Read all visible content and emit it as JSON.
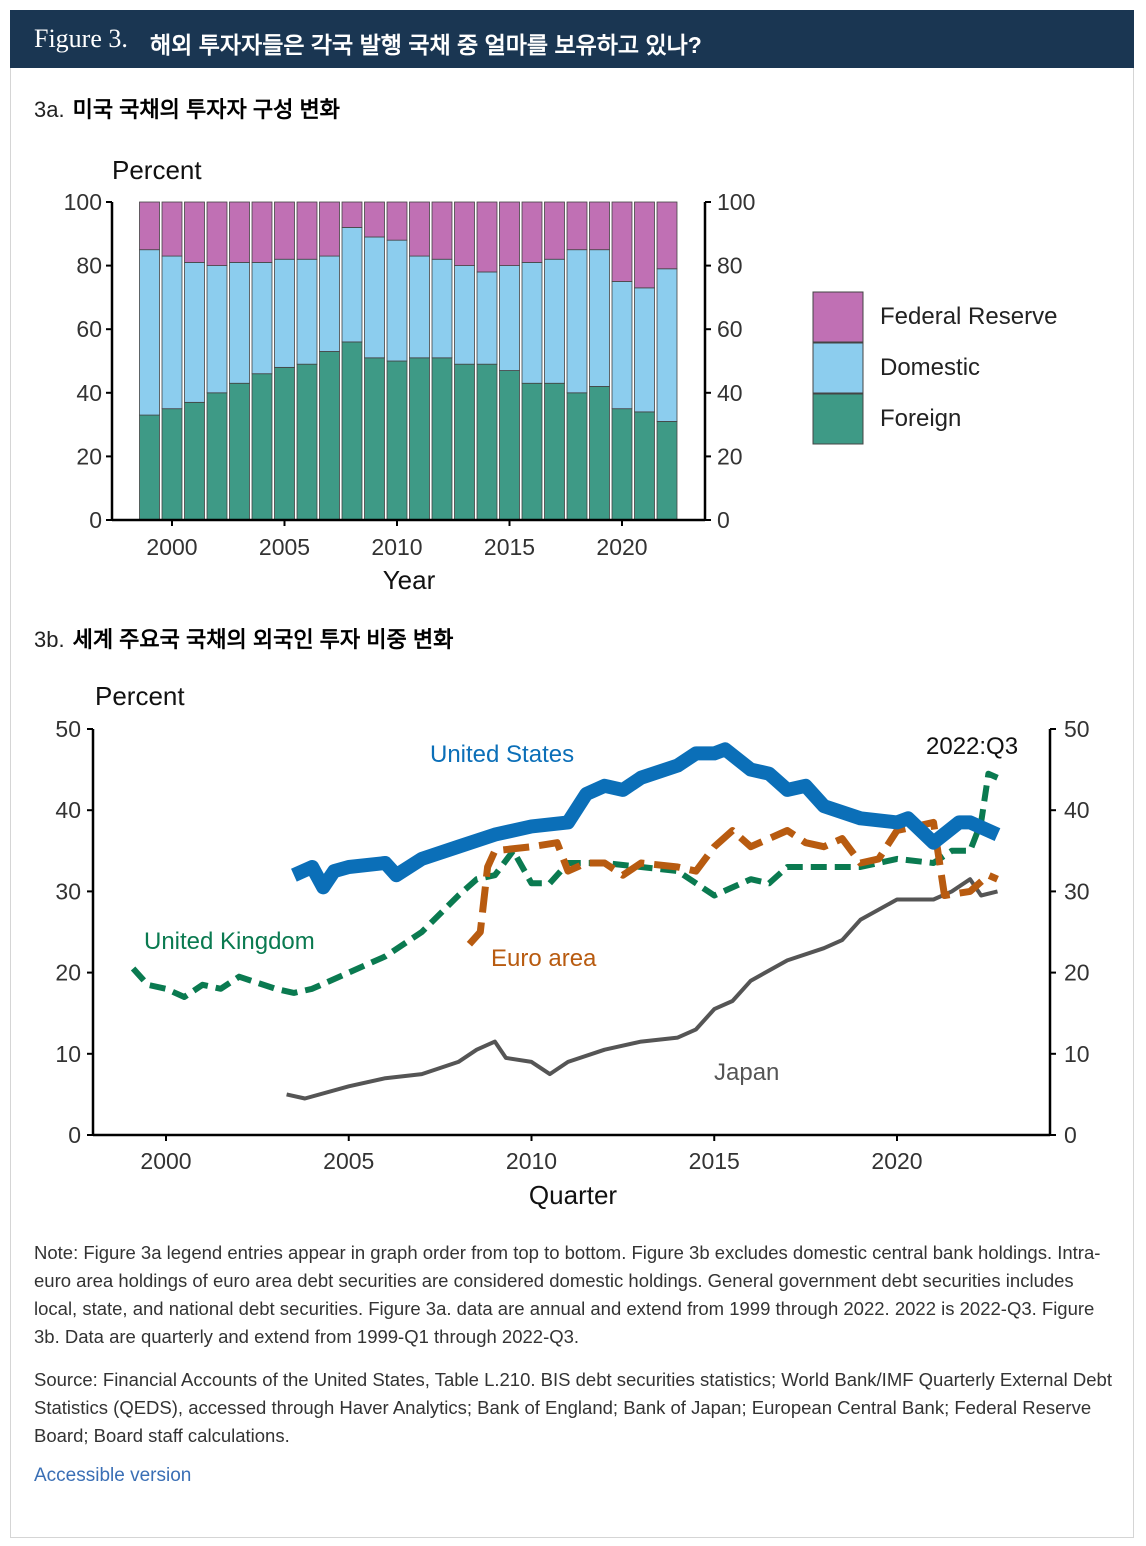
{
  "header": {
    "figure_label": "Figure 3.",
    "title": "해외 투자자들은 각국 발행 국채 중 얼마를 보유하고 있나?"
  },
  "panel_a": {
    "label": "3a.",
    "title": "미국 국채의 투자자 구성 변화"
  },
  "panel_b": {
    "label": "3b.",
    "title": "세계 주요국 국채의 외국인 투자 비중 변화"
  },
  "chart_data": [
    {
      "type": "bar",
      "stacked": true,
      "ylabel": "Percent",
      "xlabel": "Year",
      "ylim": [
        0,
        100
      ],
      "yticks": [
        0,
        20,
        40,
        60,
        80,
        100
      ],
      "xticks": [
        2000,
        2005,
        2010,
        2015,
        2020
      ],
      "legend_placement": "right",
      "categories": [
        1999,
        2000,
        2001,
        2002,
        2003,
        2004,
        2005,
        2006,
        2007,
        2008,
        2009,
        2010,
        2011,
        2012,
        2013,
        2014,
        2015,
        2016,
        2017,
        2018,
        2019,
        2020,
        2021,
        2022
      ],
      "series": [
        {
          "name": "Foreign",
          "color": "#3e9a86",
          "values": [
            33,
            35,
            37,
            40,
            43,
            46,
            48,
            49,
            53,
            56,
            51,
            50,
            51,
            51,
            49,
            49,
            47,
            43,
            43,
            40,
            42,
            35,
            34,
            31
          ]
        },
        {
          "name": "Domestic",
          "color": "#8ccdee",
          "values": [
            52,
            48,
            44,
            40,
            38,
            35,
            34,
            33,
            30,
            36,
            38,
            38,
            32,
            31,
            31,
            29,
            33,
            38,
            39,
            45,
            43,
            40,
            39,
            48
          ]
        },
        {
          "name": "Federal Reserve",
          "color": "#c070b4",
          "values": [
            15,
            17,
            19,
            20,
            19,
            19,
            18,
            18,
            17,
            8,
            11,
            12,
            17,
            18,
            20,
            22,
            20,
            19,
            18,
            15,
            15,
            25,
            27,
            21
          ]
        }
      ],
      "legend": [
        "Federal Reserve",
        "Domestic",
        "Foreign"
      ]
    },
    {
      "type": "line",
      "ylabel": "Percent",
      "xlabel": "Quarter",
      "ylim": [
        0,
        50
      ],
      "xlim": [
        1998,
        2023.5
      ],
      "yticks": [
        0,
        10,
        20,
        30,
        40,
        50
      ],
      "xticks": [
        2000,
        2005,
        2010,
        2015,
        2020
      ],
      "annotations": [
        "2022:Q3"
      ],
      "series": [
        {
          "name": "United States",
          "color": "#0b6fb8",
          "style": "solid-thick",
          "points": [
            [
              2003.5,
              32
            ],
            [
              2004,
              33
            ],
            [
              2004.3,
              30.5
            ],
            [
              2004.6,
              32.5
            ],
            [
              2005,
              33
            ],
            [
              2006,
              33.5
            ],
            [
              2006.3,
              32
            ],
            [
              2007,
              34
            ],
            [
              2008,
              35.5
            ],
            [
              2009,
              37
            ],
            [
              2010,
              38
            ],
            [
              2011,
              38.5
            ],
            [
              2011.5,
              42
            ],
            [
              2012,
              43
            ],
            [
              2012.5,
              42.5
            ],
            [
              2013,
              44
            ],
            [
              2014,
              45.5
            ],
            [
              2014.5,
              47
            ],
            [
              2015,
              47
            ],
            [
              2015.3,
              47.5
            ],
            [
              2016,
              45
            ],
            [
              2016.5,
              44.5
            ],
            [
              2017,
              42.5
            ],
            [
              2017.5,
              43
            ],
            [
              2018,
              40.5
            ],
            [
              2019,
              39
            ],
            [
              2020,
              38.5
            ],
            [
              2020.3,
              39
            ],
            [
              2021,
              36
            ],
            [
              2021.7,
              38.5
            ],
            [
              2022,
              38.5
            ],
            [
              2022.75,
              37
            ]
          ]
        },
        {
          "name": "United Kingdom",
          "color": "#0a7a50",
          "style": "dashed",
          "points": [
            [
              1999.1,
              20.5
            ],
            [
              1999.5,
              18.5
            ],
            [
              2000,
              18
            ],
            [
              2000.5,
              17
            ],
            [
              2001,
              18.5
            ],
            [
              2001.5,
              18
            ],
            [
              2002,
              19.5
            ],
            [
              2003,
              18
            ],
            [
              2003.5,
              17.5
            ],
            [
              2004,
              18
            ],
            [
              2005,
              20
            ],
            [
              2006,
              22
            ],
            [
              2007,
              25
            ],
            [
              2008,
              29.5
            ],
            [
              2008.5,
              31.5
            ],
            [
              2009,
              32
            ],
            [
              2009.5,
              35
            ],
            [
              2010,
              31
            ],
            [
              2010.5,
              31
            ],
            [
              2011,
              33.5
            ],
            [
              2012,
              33.5
            ],
            [
              2013,
              33
            ],
            [
              2014,
              32.5
            ],
            [
              2014.5,
              31
            ],
            [
              2015,
              29.5
            ],
            [
              2016,
              31.5
            ],
            [
              2016.5,
              31
            ],
            [
              2017,
              33
            ],
            [
              2018,
              33
            ],
            [
              2019,
              33
            ],
            [
              2020,
              34
            ],
            [
              2021,
              33.5
            ],
            [
              2021.5,
              35
            ],
            [
              2022,
              35
            ],
            [
              2022.3,
              38.5
            ],
            [
              2022.5,
              44.5
            ],
            [
              2022.75,
              44
            ]
          ]
        },
        {
          "name": "Euro area",
          "color": "#b85b10",
          "style": "dashed-wide",
          "points": [
            [
              2008.3,
              23.5
            ],
            [
              2008.6,
              25
            ],
            [
              2008.8,
              33
            ],
            [
              2009,
              35
            ],
            [
              2010,
              35.5
            ],
            [
              2010.7,
              36
            ],
            [
              2011,
              32.5
            ],
            [
              2011.5,
              33.5
            ],
            [
              2012,
              33.5
            ],
            [
              2012.5,
              32
            ],
            [
              2013,
              33.5
            ],
            [
              2014,
              33
            ],
            [
              2014.5,
              32.5
            ],
            [
              2015,
              35.5
            ],
            [
              2015.5,
              37.5
            ],
            [
              2016,
              35.5
            ],
            [
              2017,
              37.5
            ],
            [
              2017.5,
              36
            ],
            [
              2018,
              35.5
            ],
            [
              2018.5,
              36.5
            ],
            [
              2019,
              33.5
            ],
            [
              2019.5,
              34
            ],
            [
              2020,
              37.5
            ],
            [
              2021,
              38.5
            ],
            [
              2021.3,
              29.5
            ],
            [
              2022,
              30
            ],
            [
              2022.5,
              32
            ],
            [
              2022.75,
              31.5
            ]
          ]
        },
        {
          "name": "Japan",
          "color": "#555555",
          "style": "solid",
          "points": [
            [
              2003.3,
              5
            ],
            [
              2003.8,
              4.5
            ],
            [
              2005,
              6
            ],
            [
              2006,
              7
            ],
            [
              2007,
              7.5
            ],
            [
              2008,
              9
            ],
            [
              2008.5,
              10.5
            ],
            [
              2009,
              11.5
            ],
            [
              2009.3,
              9.5
            ],
            [
              2010,
              9
            ],
            [
              2010.5,
              7.5
            ],
            [
              2011,
              9
            ],
            [
              2012,
              10.5
            ],
            [
              2013,
              11.5
            ],
            [
              2014,
              12
            ],
            [
              2014.5,
              13
            ],
            [
              2015,
              15.5
            ],
            [
              2015.5,
              16.5
            ],
            [
              2016,
              19
            ],
            [
              2017,
              21.5
            ],
            [
              2018,
              23
            ],
            [
              2018.5,
              24
            ],
            [
              2019,
              26.5
            ],
            [
              2020,
              29
            ],
            [
              2021,
              29
            ],
            [
              2021.5,
              30
            ],
            [
              2022,
              31.5
            ],
            [
              2022.3,
              29.5
            ],
            [
              2022.75,
              30
            ]
          ]
        }
      ]
    }
  ],
  "notes": {
    "note": "Note: Figure 3a legend entries appear in graph order from top to bottom. Figure 3b excludes domestic central bank holdings. Intra-euro area holdings of euro area debt securities are considered domestic holdings. General government debt securities includes local, state, and national debt securities. Figure 3a. data are annual and extend from 1999 through 2022. 2022 is 2022-Q3. Figure 3b. Data are quarterly and extend from 1999-Q1 through 2022-Q3.",
    "source": "Source: Financial Accounts of the United States, Table L.210. BIS debt securities statistics; World Bank/IMF Quarterly External Debt Statistics (QEDS), accessed through Haver Analytics; Bank of England; Bank of Japan; European Central Bank; Federal Reserve Board; Board staff calculations.",
    "accessible_link": "Accessible version"
  }
}
